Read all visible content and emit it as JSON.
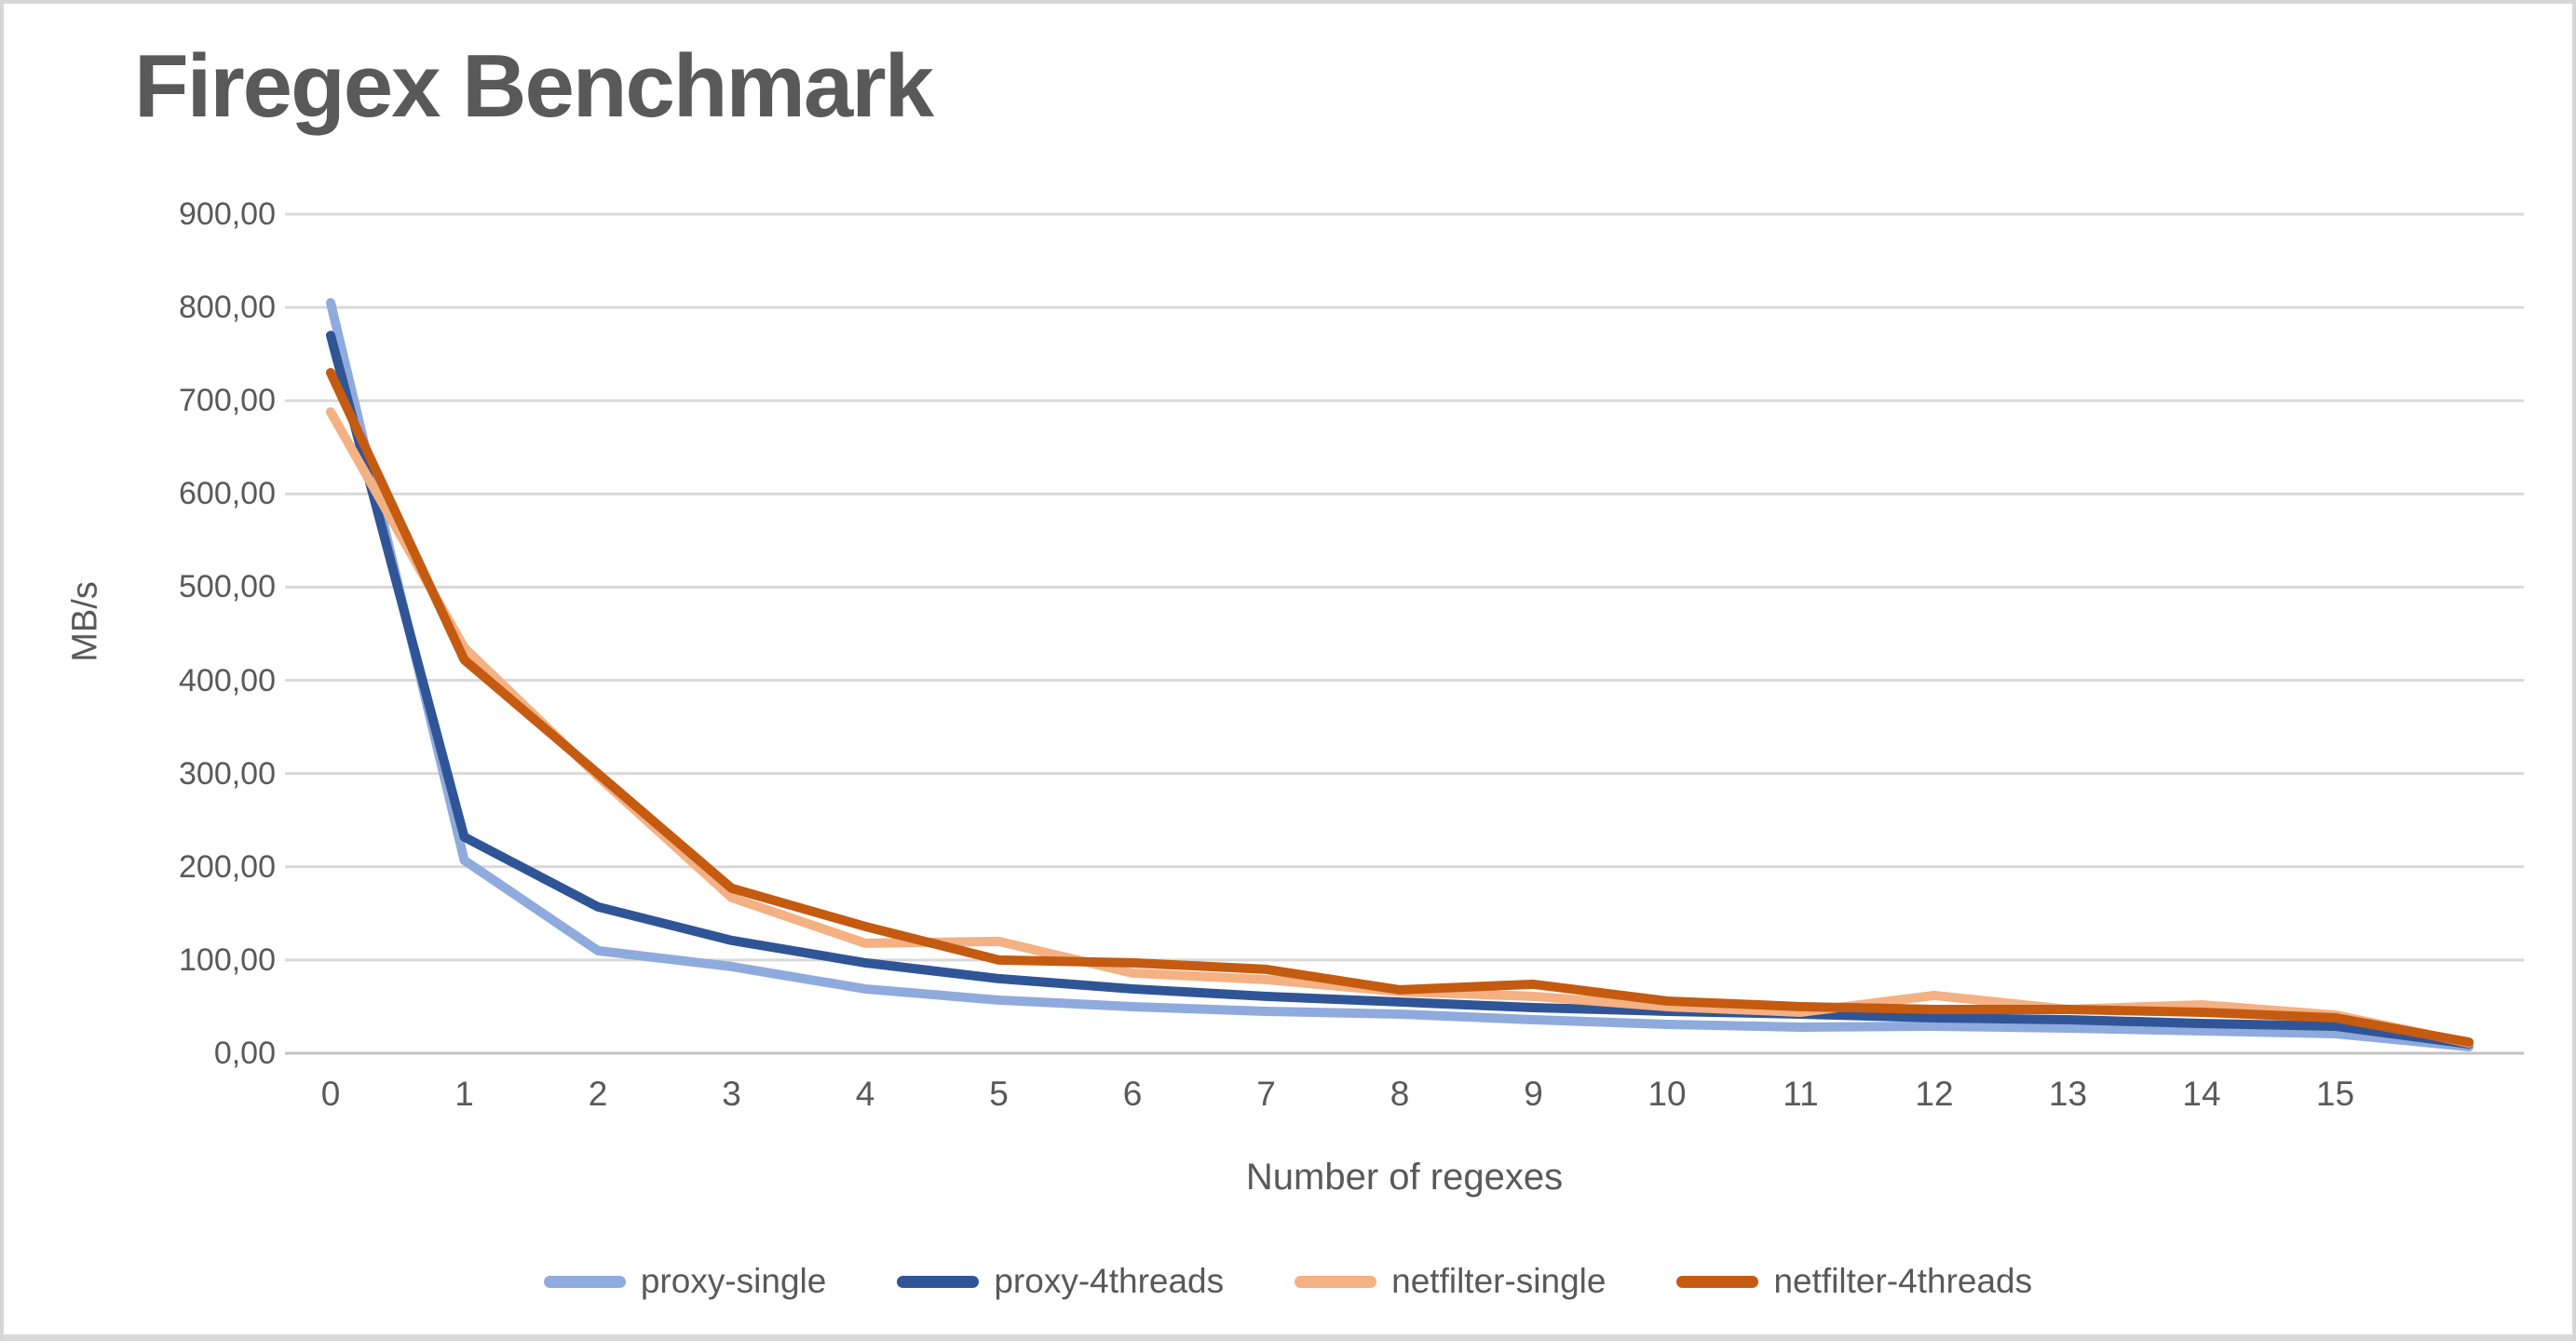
{
  "title": {
    "text": "Firegex Benchmark",
    "color": "#595959"
  },
  "chart_data": {
    "type": "line",
    "title": "Firegex Benchmark",
    "xlabel": "Number of regexes",
    "ylabel": "MB/s",
    "ylim": [
      0,
      900
    ],
    "y_tick_step": 100,
    "y_tick_labels": [
      "0,00",
      "100,00",
      "200,00",
      "300,00",
      "400,00",
      "500,00",
      "600,00",
      "700,00",
      "800,00",
      "900,00"
    ],
    "x_tick_labels": [
      "0",
      "1",
      "2",
      "3",
      "4",
      "5",
      "6",
      "7",
      "8",
      "9",
      "10",
      "11",
      "12",
      "13",
      "14",
      "15"
    ],
    "x": [
      0,
      1,
      2,
      3,
      4,
      5,
      6,
      7,
      8,
      9,
      10,
      11,
      12,
      13,
      14,
      15,
      16
    ],
    "grid": "horizontal",
    "legend_position": "bottom",
    "gridline_color": "#d9d9d9",
    "axis_line_color": "#c3c3c3",
    "tick_color": "#595959",
    "series": [
      {
        "name": "proxy-single",
        "color": "#8FAADC",
        "values": [
          805,
          207,
          110,
          93,
          69,
          57,
          50,
          45,
          42,
          36,
          31,
          28,
          29,
          27,
          24,
          21,
          7
        ]
      },
      {
        "name": "proxy-4threads",
        "color": "#2F5597",
        "values": [
          770,
          232,
          157,
          121,
          97,
          80,
          69,
          61,
          55,
          49,
          45,
          42,
          38,
          36,
          32,
          29,
          10
        ]
      },
      {
        "name": "netfilter-single",
        "color": "#F4B183",
        "values": [
          688,
          435,
          297,
          167,
          118,
          120,
          86,
          79,
          66,
          61,
          50,
          44,
          62,
          47,
          52,
          41,
          11
        ]
      },
      {
        "name": "netfilter-4threads",
        "color": "#C55A11",
        "values": [
          730,
          422,
          300,
          177,
          136,
          100,
          97,
          90,
          68,
          74,
          56,
          50,
          47,
          47,
          44,
          38,
          12
        ]
      }
    ]
  }
}
